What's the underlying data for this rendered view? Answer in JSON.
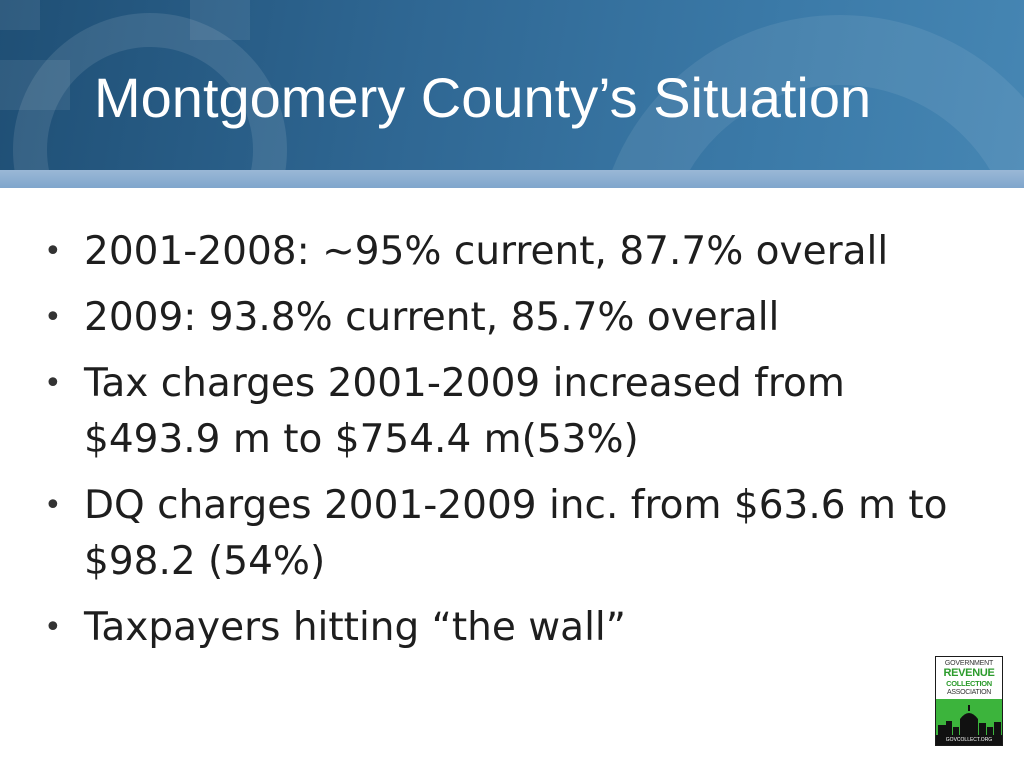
{
  "slide": {
    "title": "Montgomery County’s Situation",
    "bullet_symbol": "•",
    "bullets": [
      "2001-2008: ~95% current, 87.7% overall",
      "2009: 93.8% current, 85.7% overall",
      "Tax charges 2001-2009 increased from $493.9 m to $754.4 m(53%)",
      "DQ charges 2001-2009 inc. from $63.6 m to $98.2 (54%)",
      "Taxpayers hitting “the wall”"
    ]
  },
  "logo": {
    "line1": "GOVERNMENT",
    "line2": "REVENUE",
    "line3": "COLLECTION",
    "line4": "ASSOCIATION",
    "url": "GOVCOLLECT.ORG",
    "colors": {
      "green": "#3cb43c",
      "dark": "#111111"
    }
  },
  "theme": {
    "header_blue": "#2f6793",
    "band_blue": "#8fb0d2",
    "text_dark": "#1e1e1e"
  }
}
